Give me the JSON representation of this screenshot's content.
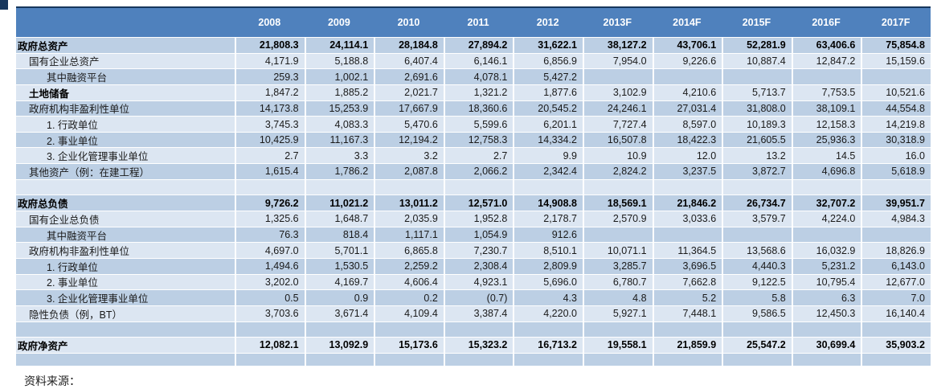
{
  "colors": {
    "header_bg": "#4f81bd",
    "band_dark": "#bccfe4",
    "band_light": "#dce6f2",
    "top_border": "#17375d"
  },
  "table": {
    "label_column_header": "",
    "years": [
      "2008",
      "2009",
      "2010",
      "2011",
      "2012",
      "2013F",
      "2014F",
      "2015F",
      "2016F",
      "2017F"
    ],
    "rows": [
      {
        "label": "政府总资产",
        "level": 0,
        "style": "bold",
        "values": [
          "21,808.3",
          "24,114.1",
          "28,184.8",
          "27,894.2",
          "31,622.1",
          "38,127.2",
          "43,706.1",
          "52,281.9",
          "63,406.6",
          "75,854.8"
        ]
      },
      {
        "label": "国有企业总资产",
        "level": 1,
        "style": "normal",
        "values": [
          "4,171.9",
          "5,188.8",
          "6,407.4",
          "6,146.1",
          "6,856.9",
          "7,954.0",
          "9,226.6",
          "10,887.4",
          "12,847.2",
          "15,159.6"
        ]
      },
      {
        "label": "其中融资平台",
        "level": 2,
        "style": "normal",
        "values": [
          "259.3",
          "1,002.1",
          "2,691.6",
          "4,078.1",
          "5,427.2",
          "",
          "",
          "",
          "",
          ""
        ]
      },
      {
        "label": "土地储备",
        "level": 1,
        "style": "bold_label",
        "values": [
          "1,847.2",
          "1,885.2",
          "2,021.7",
          "1,321.2",
          "1,877.6",
          "3,102.9",
          "4,210.6",
          "5,713.7",
          "7,753.5",
          "10,521.6"
        ]
      },
      {
        "label": "政府机构非盈利性单位",
        "level": 1,
        "style": "normal",
        "values": [
          "14,173.8",
          "15,253.9",
          "17,667.9",
          "18,360.6",
          "20,545.2",
          "24,246.1",
          "27,031.4",
          "31,808.0",
          "38,109.1",
          "44,554.8"
        ]
      },
      {
        "label": "1. 行政单位",
        "level": 2,
        "style": "normal",
        "values": [
          "3,745.3",
          "4,083.3",
          "5,470.6",
          "5,599.6",
          "6,201.1",
          "7,727.4",
          "8,597.0",
          "10,189.3",
          "12,158.3",
          "14,219.8"
        ]
      },
      {
        "label": "2. 事业单位",
        "level": 2,
        "style": "normal",
        "values": [
          "10,425.9",
          "11,167.3",
          "12,194.2",
          "12,758.3",
          "14,334.2",
          "16,507.8",
          "18,422.3",
          "21,605.5",
          "25,936.3",
          "30,318.9"
        ]
      },
      {
        "label": "3. 企业化管理事业单位",
        "level": 2,
        "style": "normal",
        "values": [
          "2.7",
          "3.3",
          "3.2",
          "2.7",
          "9.9",
          "10.9",
          "12.0",
          "13.2",
          "14.5",
          "16.0"
        ]
      },
      {
        "label": "其他资产（例：在建工程）",
        "level": 1,
        "style": "normal",
        "values": [
          "1,615.4",
          "1,786.2",
          "2,087.8",
          "2,066.2",
          "2,342.4",
          "2,824.2",
          "3,237.5",
          "3,872.7",
          "4,696.8",
          "5,618.9"
        ]
      },
      {
        "label": "",
        "level": 0,
        "style": "normal",
        "values": [
          "",
          "",
          "",
          "",
          "",
          "",
          "",
          "",
          "",
          ""
        ]
      },
      {
        "label": "政府总负债",
        "level": 0,
        "style": "bold",
        "values": [
          "9,726.2",
          "11,021.2",
          "13,011.2",
          "12,571.0",
          "14,908.8",
          "18,569.1",
          "21,846.2",
          "26,734.7",
          "32,707.2",
          "39,951.7"
        ]
      },
      {
        "label": "国有企业总负债",
        "level": 1,
        "style": "normal",
        "values": [
          "1,325.6",
          "1,648.7",
          "2,035.9",
          "1,952.8",
          "2,178.7",
          "2,570.9",
          "3,033.6",
          "3,579.7",
          "4,224.0",
          "4,984.3"
        ]
      },
      {
        "label": "其中融资平台",
        "level": 2,
        "style": "normal",
        "values": [
          "76.3",
          "818.4",
          "1,117.1",
          "1,054.9",
          "912.6",
          "",
          "",
          "",
          "",
          ""
        ]
      },
      {
        "label": "政府机构非盈利性单位",
        "level": 1,
        "style": "normal",
        "values": [
          "4,697.0",
          "5,701.1",
          "6,865.8",
          "7,230.7",
          "8,510.1",
          "10,071.1",
          "11,364.5",
          "13,568.6",
          "16,032.9",
          "18,826.9"
        ]
      },
      {
        "label": "1. 行政单位",
        "level": 2,
        "style": "normal",
        "values": [
          "1,494.6",
          "1,530.5",
          "2,259.2",
          "2,308.4",
          "2,809.9",
          "3,285.7",
          "3,696.5",
          "4,440.3",
          "5,231.2",
          "6,143.0"
        ]
      },
      {
        "label": "2. 事业单位",
        "level": 2,
        "style": "normal",
        "values": [
          "3,202.0",
          "4,169.7",
          "4,606.4",
          "4,923.1",
          "5,696.0",
          "6,780.7",
          "7,662.8",
          "9,122.5",
          "10,795.4",
          "12,677.0"
        ]
      },
      {
        "label": "3. 企业化管理事业单位",
        "level": 2,
        "style": "normal",
        "values": [
          "0.5",
          "0.9",
          "0.2",
          "(0.7)",
          "4.3",
          "4.8",
          "5.2",
          "5.8",
          "6.3",
          "7.0"
        ]
      },
      {
        "label": "隐性负债（例，BT）",
        "level": 1,
        "style": "normal",
        "values": [
          "3,703.6",
          "3,671.4",
          "4,109.4",
          "3,387.4",
          "4,220.0",
          "5,927.1",
          "7,448.1",
          "9,586.5",
          "12,450.3",
          "16,140.4"
        ]
      },
      {
        "label": "",
        "level": 0,
        "style": "normal",
        "values": [
          "",
          "",
          "",
          "",
          "",
          "",
          "",
          "",
          "",
          ""
        ]
      },
      {
        "label": "政府净资产",
        "level": 0,
        "style": "bold",
        "values": [
          "12,082.1",
          "13,092.9",
          "15,173.6",
          "15,323.2",
          "16,713.2",
          "19,558.1",
          "21,859.9",
          "25,547.2",
          "30,699.4",
          "35,903.2"
        ]
      },
      {
        "label": "",
        "level": 0,
        "style": "normal",
        "values": [
          "",
          "",
          "",
          "",
          "",
          "",
          "",
          "",
          "",
          ""
        ]
      }
    ]
  },
  "footer": {
    "source_label": "资料来源："
  }
}
